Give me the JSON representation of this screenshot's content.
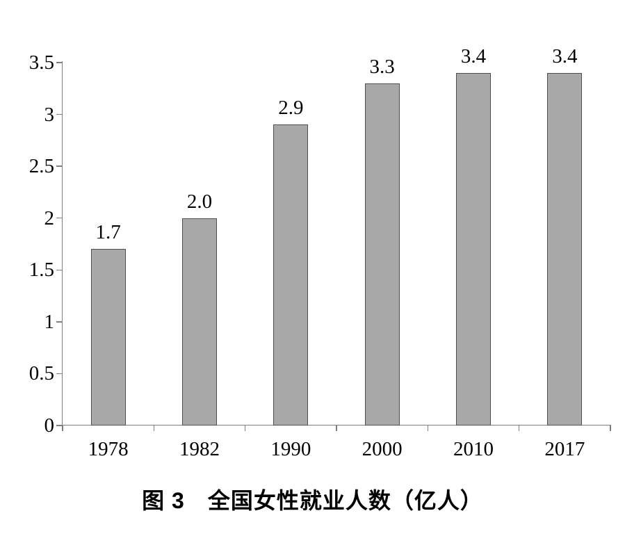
{
  "page": {
    "background": "#ffffff"
  },
  "chart_data": {
    "type": "bar",
    "title": "图 3　全国女性就业人数（亿人）",
    "categories": [
      "1978",
      "1982",
      "1990",
      "2000",
      "2010",
      "2017"
    ],
    "values": [
      1.7,
      2.0,
      2.9,
      3.3,
      3.4,
      3.4
    ],
    "bar_labels": [
      "1.7",
      "2.0",
      "2.9",
      "3.3",
      "3.4",
      "3.4"
    ],
    "xlabel": "",
    "ylabel": "",
    "ylim": [
      0,
      3.5
    ],
    "yticks": [
      "0",
      "0.5",
      "1",
      "1.5",
      "2",
      "2.5",
      "3",
      "3.5"
    ],
    "grid": false,
    "legend": "none",
    "colors": {
      "bar_fill": "#a8a8a8",
      "bar_border": "#4f4f4f",
      "axis": "#7f7f7f",
      "text": "#000000"
    }
  }
}
